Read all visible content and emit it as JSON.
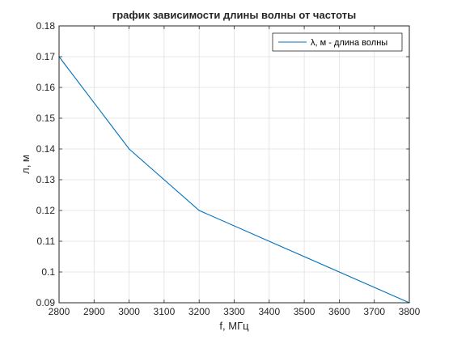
{
  "chart_data": {
    "type": "line",
    "title": "график зависимости длины волны от частоты",
    "xlabel": "f, МГц",
    "ylabel": "л, м",
    "xlim": [
      2800,
      3800
    ],
    "ylim": [
      0.09,
      0.18
    ],
    "xticks": [
      2800,
      2900,
      3000,
      3100,
      3200,
      3300,
      3400,
      3500,
      3600,
      3700,
      3800
    ],
    "yticks": [
      0.09,
      0.1,
      0.11,
      0.12,
      0.13,
      0.14,
      0.15,
      0.16,
      0.17,
      0.18
    ],
    "xtick_labels": [
      "2800",
      "2900",
      "3000",
      "3100",
      "3200",
      "3300",
      "3400",
      "3500",
      "3600",
      "3700",
      "3800"
    ],
    "ytick_labels": [
      "0.09",
      "0.1",
      "0.11",
      "0.12",
      "0.13",
      "0.14",
      "0.15",
      "0.16",
      "0.17",
      "0.18"
    ],
    "grid": true,
    "legend_position": "top-right",
    "series": [
      {
        "name": "λ, м - длина волны",
        "color": "#0072BD",
        "x": [
          2800,
          3000,
          3200,
          3800
        ],
        "y": [
          0.17,
          0.14,
          0.12,
          0.09
        ]
      }
    ]
  }
}
